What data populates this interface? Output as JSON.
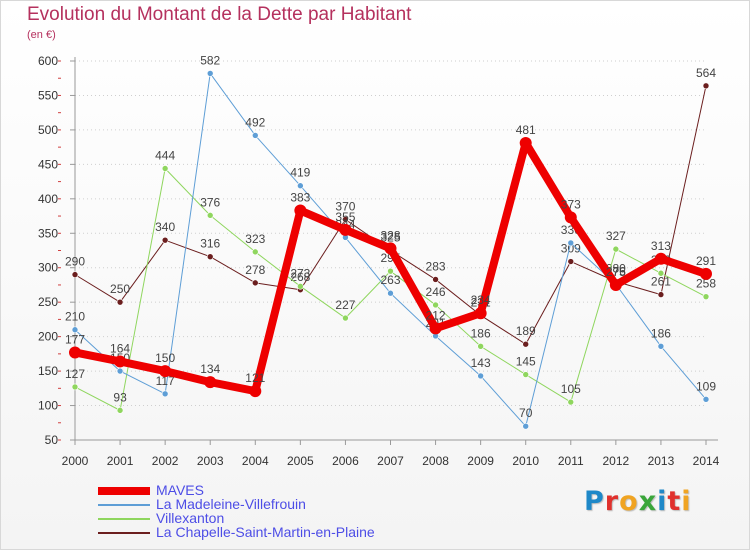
{
  "title": "Evolution du Montant de la Dette par Habitant",
  "unit": "(en €)",
  "logo": {
    "text": "Proxiti",
    "letters": [
      {
        "ch": "P",
        "color": "#1e88c8"
      },
      {
        "ch": "r",
        "color": "#e0312d"
      },
      {
        "ch": "o",
        "color": "#f0a422"
      },
      {
        "ch": "x",
        "color": "#3aa63a"
      },
      {
        "ch": "i",
        "color": "#1e88c8"
      },
      {
        "ch": "t",
        "color": "#e0312d"
      },
      {
        "ch": "i",
        "color": "#f0a422"
      }
    ]
  },
  "chart_data": {
    "type": "line",
    "title": "Evolution du Montant de la Dette par Habitant",
    "ylabel": "(en €)",
    "xlabel": "",
    "x": [
      2000,
      2001,
      2002,
      2003,
      2004,
      2005,
      2006,
      2007,
      2008,
      2009,
      2010,
      2011,
      2012,
      2013,
      2014
    ],
    "ylim": [
      50,
      600
    ],
    "yticks": [
      50,
      100,
      150,
      200,
      250,
      300,
      350,
      400,
      450,
      500,
      550,
      600
    ],
    "grid": "horizontal dotted",
    "legend_position": "bottom-left",
    "series": [
      {
        "name": "MAVES",
        "color": "#ee0000",
        "width": 8,
        "values": [
          177,
          164,
          150,
          134,
          121,
          383,
          355,
          328,
          212,
          234,
          481,
          373,
          275,
          313,
          291
        ],
        "labels": [
          "177",
          "164",
          "150",
          "134",
          "121",
          "383",
          "355",
          "328",
          "212",
          "234",
          "481",
          "373",
          "275",
          "313",
          "291"
        ]
      },
      {
        "name": "La Madeleine-Villefrouin",
        "color": "#5e9ed6",
        "width": 1,
        "values": [
          210,
          150,
          117,
          582,
          492,
          419,
          344,
          263,
          201,
          143,
          70,
          336,
          276,
          186,
          109
        ],
        "labels": [
          "210",
          "150",
          "117",
          "582",
          "492",
          "419",
          "344",
          "263",
          "201",
          "143",
          "70",
          "336",
          "276",
          "186",
          "109"
        ]
      },
      {
        "name": "Villexanton",
        "color": "#8fd65e",
        "width": 1,
        "values": [
          127,
          93,
          444,
          376,
          323,
          273,
          227,
          295,
          246,
          186,
          145,
          105,
          327,
          292,
          258
        ],
        "labels": [
          "127",
          "93",
          "444",
          "376",
          "323",
          "273",
          "227",
          "295",
          "246",
          "186",
          "145",
          "105",
          "327",
          "292",
          "258"
        ]
      },
      {
        "name": "La Chapelle-Saint-Martin-en-Plaine",
        "color": "#6b1e1e",
        "width": 1,
        "values": [
          290,
          250,
          340,
          316,
          278,
          268,
          370,
          325,
          283,
          231,
          189,
          309,
          280,
          261,
          564
        ],
        "labels": [
          "290",
          "250",
          "340",
          "316",
          "278",
          "268",
          "370",
          "325",
          "283",
          "231",
          "189",
          "309",
          "280",
          "261",
          "564"
        ]
      }
    ]
  }
}
